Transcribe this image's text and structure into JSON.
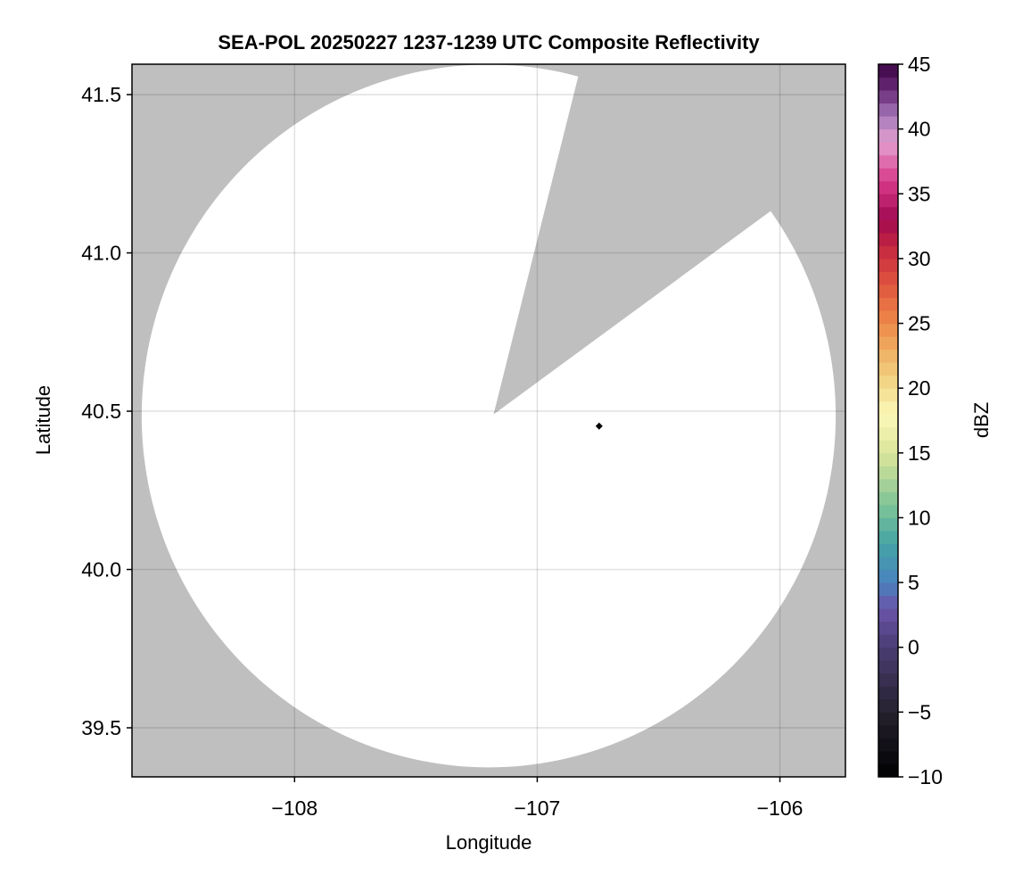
{
  "chart_data": {
    "type": "heatmap",
    "title": "SEA-POL 20250227 1237-1239 UTC Composite Reflectivity",
    "xlabel": "Longitude",
    "ylabel": "Latitude",
    "xlim": [
      -108.67,
      -105.73
    ],
    "ylim": [
      39.345,
      41.596
    ],
    "xticks": [
      -108,
      -107,
      -106
    ],
    "xtick_labels": [
      "−108",
      "−107",
      "−106"
    ],
    "yticks": [
      39.5,
      40.0,
      40.5,
      41.0,
      41.5
    ],
    "ytick_labels": [
      "39.5",
      "40.0",
      "40.5",
      "41.0",
      "41.5"
    ],
    "grid": true,
    "background_color": "#bfbfbf",
    "coverage": {
      "center_lon": -107.2,
      "center_lat": 40.485,
      "radius_lon": 1.43,
      "radius_lat": 1.11,
      "fill": "#ffffff",
      "blocked_sector": {
        "apex": [
          -107.18,
          40.49
        ],
        "edge1": [
          -106.84,
          41.53
        ],
        "edge2": [
          -106.06,
          41.12
        ]
      }
    },
    "marker": {
      "lon": -106.745,
      "lat": 40.453,
      "shape": "diamond",
      "color": "#000000"
    },
    "colorbar": {
      "label": "dBZ",
      "range": [
        -10,
        45
      ],
      "ticks": [
        -10,
        -5,
        0,
        5,
        10,
        15,
        20,
        25,
        30,
        35,
        40,
        45
      ],
      "tick_labels": [
        "−10",
        "−5",
        "0",
        "5",
        "10",
        "15",
        "20",
        "25",
        "30",
        "35",
        "40",
        "45"
      ],
      "bin_width": 1,
      "anchor_colors": [
        [
          -10,
          "#000000"
        ],
        [
          -5,
          "#25212f"
        ],
        [
          0,
          "#4a3d73"
        ],
        [
          3,
          "#6a55a8"
        ],
        [
          5,
          "#4a82bf"
        ],
        [
          8,
          "#44a4a5"
        ],
        [
          11,
          "#7fc496"
        ],
        [
          15,
          "#dbe59a"
        ],
        [
          18,
          "#fbf8b8"
        ],
        [
          21,
          "#f0ce7c"
        ],
        [
          25,
          "#ee8a48"
        ],
        [
          28,
          "#e0553f"
        ],
        [
          31,
          "#c42540"
        ],
        [
          33,
          "#a00a50"
        ],
        [
          36,
          "#d83a8a"
        ],
        [
          39,
          "#e3a0d0"
        ],
        [
          41,
          "#a679b9"
        ],
        [
          43,
          "#6a2a78"
        ],
        [
          45,
          "#3d0545"
        ]
      ]
    }
  }
}
